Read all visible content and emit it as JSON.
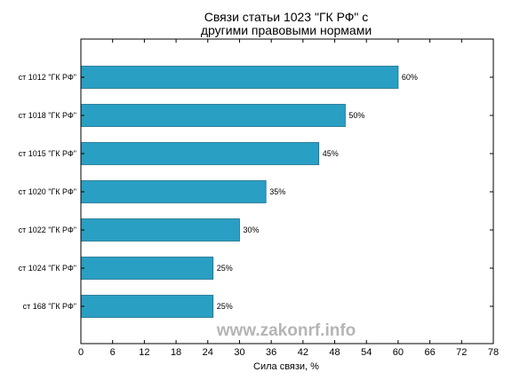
{
  "chart_data": {
    "type": "bar",
    "orientation": "horizontal",
    "title": [
      "Связи статьи 1023 \"ГК РФ\" с",
      "другими правовыми нормами"
    ],
    "xlabel": "Сила связи, %",
    "ylabel": "",
    "categories": [
      "ст 1012 \"ГК РФ\"",
      "ст 1018 \"ГК РФ\"",
      "ст 1015 \"ГК РФ\"",
      "ст 1020 \"ГК РФ\"",
      "ст 1022 \"ГК РФ\"",
      "ст 1024 \"ГК РФ\"",
      "ст 168 \"ГК РФ\""
    ],
    "values": [
      60,
      50,
      45,
      35,
      30,
      25,
      25
    ],
    "data_labels": [
      "60%",
      "50%",
      "45%",
      "35%",
      "30%",
      "25%",
      "25%"
    ],
    "xlim": [
      0,
      78
    ],
    "xticks": [
      0,
      6,
      12,
      18,
      24,
      30,
      36,
      42,
      48,
      54,
      60,
      66,
      72,
      78
    ],
    "grid": false,
    "bar_color": "#2a9fc4",
    "bar_edge_color": "#1a6e8a"
  },
  "watermark": "www.zakonrf.info"
}
